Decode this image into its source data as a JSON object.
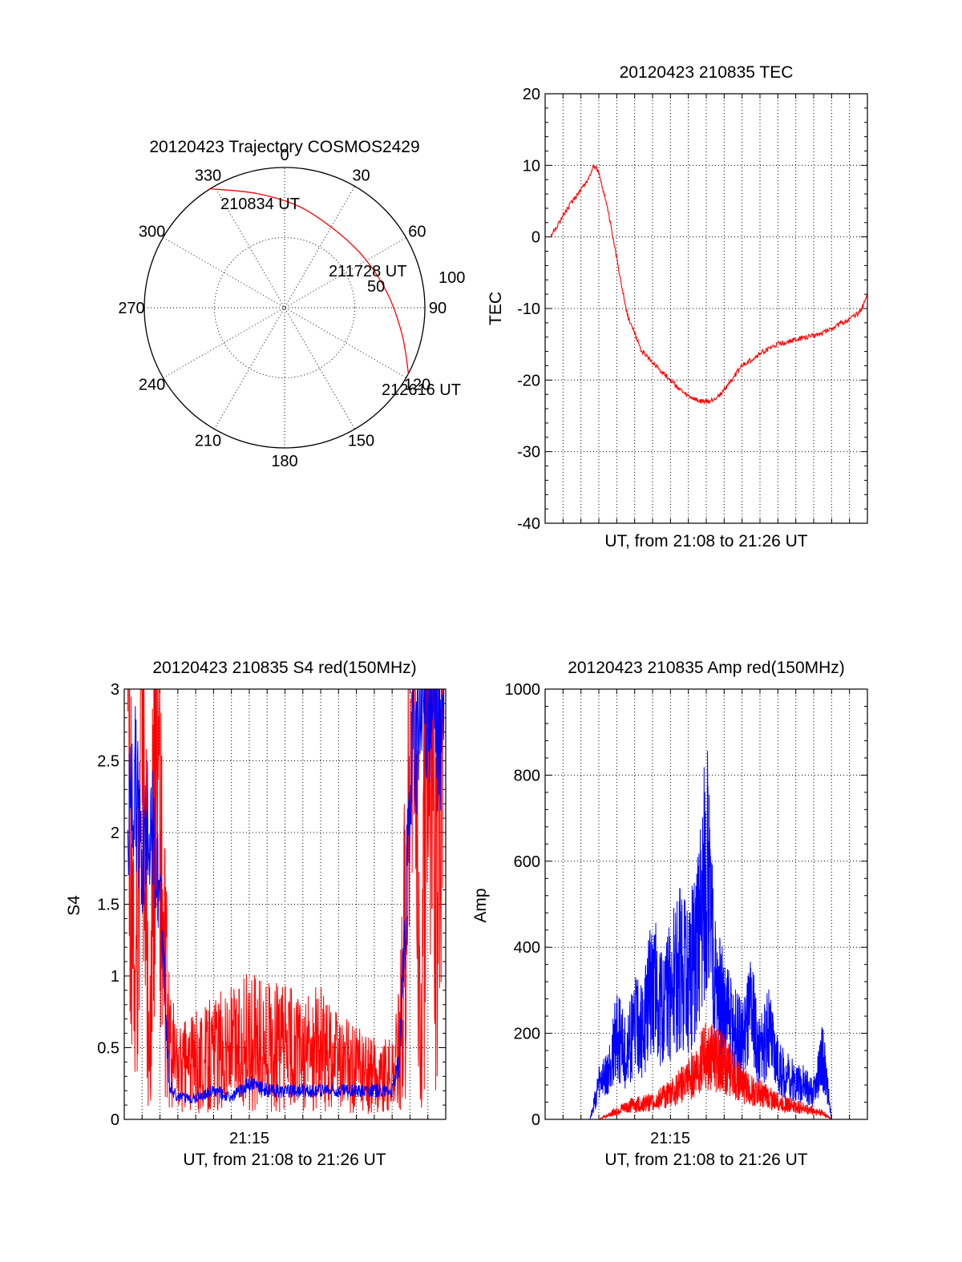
{
  "chart_data": [
    {
      "type": "polar",
      "title": "20120423 Trajectory COSMOS2429",
      "azimuth_labels": [
        "0",
        "30",
        "60",
        "90",
        "120",
        "150",
        "180",
        "210",
        "240",
        "270",
        "300",
        "330"
      ],
      "radial_labels": [
        "50",
        "100"
      ],
      "rlim": [
        0,
        100
      ],
      "grid": true,
      "series": [
        {
          "color": "#ff0000",
          "points": [
            {
              "az": 328,
              "r": 100
            },
            {
              "az": 346,
              "r": 84
            },
            {
              "az": 8,
              "r": 73
            },
            {
              "az": 33,
              "r": 66
            },
            {
              "az": 58,
              "r": 67
            },
            {
              "az": 82,
              "r": 74
            },
            {
              "az": 103,
              "r": 86
            },
            {
              "az": 118,
              "r": 100
            }
          ]
        }
      ],
      "annotations": [
        "210834 UT",
        "211728 UT",
        "212616 UT"
      ]
    },
    {
      "type": "line",
      "title": "20120423 210835 TEC",
      "xlabel": "UT, from 21:08 to 21:26 UT",
      "ylabel": "TEC",
      "xlim": [
        0,
        18
      ],
      "ylim": [
        -40,
        20
      ],
      "yticks": [
        "20",
        "10",
        "0",
        "-10",
        "-20",
        "-30",
        "-40"
      ],
      "grid": true,
      "series": [
        {
          "color": "#ff0000",
          "x": [
            0.3,
            1.0,
            1.8,
            2.4,
            2.7,
            3.0,
            3.4,
            4.0,
            4.6,
            5.4,
            6.2,
            7.0,
            7.8,
            8.6,
            9.2,
            9.8,
            10.4,
            11.0,
            11.6,
            12.2,
            13.0,
            13.8,
            14.6,
            15.4,
            16.2,
            17.0,
            17.6,
            18.0
          ],
          "y": [
            0,
            3,
            6,
            8,
            10,
            9,
            5,
            -3,
            -11,
            -16,
            -18,
            -20,
            -22,
            -23,
            -23,
            -22,
            -20,
            -18,
            -17,
            -16,
            -15,
            -14.5,
            -14,
            -13.5,
            -12.5,
            -11.5,
            -10.5,
            -8
          ]
        }
      ]
    },
    {
      "type": "line",
      "title": "20120423 210835 S4 red(150MHz)",
      "xlabel": "UT, from 21:08 to 21:26 UT",
      "ylabel": "S4",
      "xlim": [
        0,
        18
      ],
      "ylim": [
        0,
        3
      ],
      "yticks": [
        "3",
        "2.5",
        "2",
        "1.5",
        "1",
        "0.5",
        "0"
      ],
      "xtick_label": "21:15",
      "grid": true,
      "series": [
        {
          "color": "#ff0000",
          "x": [
            0.2,
            0.6,
            1.0,
            1.4,
            1.8,
            2.2,
            2.5,
            3.0,
            4.0,
            5.0,
            6.0,
            7.0,
            8.0,
            9.0,
            10.0,
            11.0,
            12.0,
            13.0,
            14.0,
            15.0,
            15.4,
            15.8,
            16.2,
            16.6,
            17.0,
            17.5,
            17.9
          ],
          "y": [
            3.0,
            0.5,
            3.0,
            0.3,
            3.0,
            1.2,
            0.55,
            0.35,
            0.4,
            0.45,
            0.5,
            0.55,
            0.5,
            0.5,
            0.45,
            0.5,
            0.4,
            0.35,
            0.3,
            0.3,
            0.5,
            1.5,
            3.0,
            0.4,
            3.0,
            1.5,
            3.0
          ]
        },
        {
          "color": "#0000ff",
          "x": [
            0.2,
            0.6,
            1.0,
            1.4,
            1.8,
            2.2,
            2.5,
            3.0,
            4.0,
            5.0,
            6.0,
            7.0,
            8.0,
            9.0,
            10.0,
            11.0,
            12.0,
            13.0,
            14.0,
            15.0,
            15.4,
            15.8,
            16.2,
            16.6,
            17.0,
            17.5,
            17.9
          ],
          "y": [
            2.0,
            2.4,
            1.8,
            2.2,
            1.7,
            1.2,
            0.25,
            0.15,
            0.15,
            0.2,
            0.15,
            0.25,
            0.2,
            0.2,
            0.2,
            0.2,
            0.2,
            0.2,
            0.2,
            0.2,
            0.4,
            1.6,
            2.6,
            2.8,
            3.0,
            2.7,
            2.8
          ]
        }
      ]
    },
    {
      "type": "line",
      "title": "20120423 210835 Amp red(150MHz)",
      "xlabel": "UT, from 21:08 to 21:26 UT",
      "ylabel": "Amp",
      "xlim": [
        0,
        18
      ],
      "ylim": [
        0,
        1000
      ],
      "yticks": [
        "1000",
        "800",
        "600",
        "400",
        "200",
        "0"
      ],
      "xtick_label": "21:15",
      "grid": true,
      "series": [
        {
          "color": "#0000ff",
          "x": [
            0,
            2.5,
            3.0,
            3.5,
            4.0,
            4.5,
            5.0,
            5.5,
            6.0,
            6.5,
            7.0,
            7.5,
            8.0,
            8.5,
            9.0,
            9.5,
            10.0,
            10.5,
            11.0,
            11.5,
            12.0,
            12.5,
            13.0,
            13.5,
            14.0,
            14.5,
            15.0,
            15.5,
            16.0,
            18.0
          ],
          "y": [
            0,
            0,
            80,
            100,
            200,
            150,
            220,
            200,
            350,
            250,
            300,
            350,
            320,
            400,
            600,
            300,
            250,
            200,
            180,
            250,
            150,
            200,
            120,
            100,
            90,
            80,
            60,
            150,
            0,
            0
          ]
        },
        {
          "color": "#ff0000",
          "x": [
            0,
            3.0,
            4.0,
            5.0,
            6.0,
            7.0,
            8.0,
            9.0,
            10.0,
            11.0,
            12.0,
            13.0,
            14.0,
            15.0,
            15.5,
            16.0,
            18.0
          ],
          "y": [
            0,
            0,
            20,
            35,
            40,
            60,
            90,
            150,
            130,
            80,
            60,
            40,
            30,
            20,
            15,
            0,
            0
          ]
        }
      ]
    }
  ]
}
